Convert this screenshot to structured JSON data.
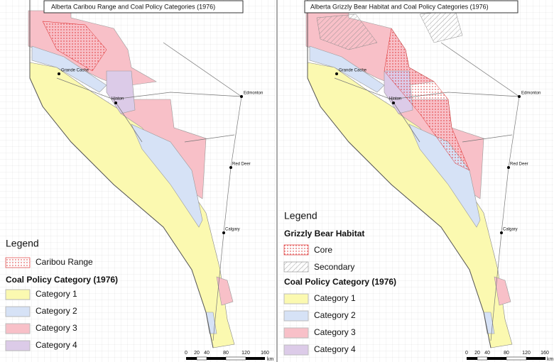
{
  "panels": [
    {
      "title": "Alberta Caribou Range and Coal Policy Categories (1976)",
      "cities": [
        "Grande Cache",
        "Hinton",
        "Edmonton",
        "Red Deer",
        "Calgary"
      ],
      "legend": {
        "heading": "Legend",
        "items": [
          "Caribou Range"
        ],
        "category_heading": "Coal Policy Category (1976)",
        "categories": [
          "Category 1",
          "Category 2",
          "Category 3",
          "Category 4"
        ]
      },
      "scale": {
        "labels": [
          "0",
          "20",
          "40",
          "80",
          "120",
          "160"
        ],
        "unit": "km"
      }
    },
    {
      "title": "Alberta Grizzly Bear Habitat and Coal Policy Categories (1976)",
      "cities": [
        "Grande Cache",
        "Hinton",
        "Edmonton",
        "Red Deer",
        "Calgary"
      ],
      "legend": {
        "heading": "Legend",
        "group_heading": "Grizzly Bear Habitat",
        "items": [
          "Core",
          "Secondary"
        ],
        "category_heading": "Coal Policy Category (1976)",
        "categories": [
          "Category 1",
          "Category 2",
          "Category 3",
          "Category 4"
        ]
      },
      "scale": {
        "labels": [
          "0",
          "20",
          "40",
          "80",
          "120",
          "160"
        ],
        "unit": "km"
      }
    }
  ]
}
